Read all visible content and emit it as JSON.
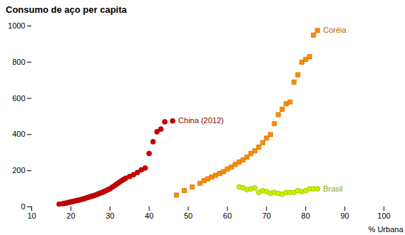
{
  "chart_data": {
    "type": "scatter",
    "title": "Consumo de aço per capita",
    "xlabel": "% Urbana",
    "xlim": [
      10,
      100
    ],
    "ylim": [
      0,
      1000
    ],
    "xticks": [
      10,
      20,
      30,
      40,
      50,
      60,
      70,
      80,
      90,
      100
    ],
    "yticks": [
      0,
      200,
      400,
      600,
      800,
      1000
    ],
    "grid": false,
    "series": [
      {
        "name": "China (2012)",
        "color": "#cc0000",
        "marker": "circle",
        "x": [
          17,
          18,
          18.5,
          19,
          19.5,
          20,
          20.5,
          21,
          21.5,
          22,
          22.5,
          23,
          23.5,
          24,
          24.5,
          25,
          25.5,
          26,
          26.5,
          27,
          27.5,
          28,
          28.5,
          29,
          29.5,
          30,
          30.5,
          31,
          31.5,
          32,
          32.5,
          33,
          33.5,
          34,
          35,
          36,
          37,
          38,
          39,
          40,
          41,
          42,
          43,
          44,
          46
        ],
        "values": [
          15,
          18,
          20,
          22,
          25,
          28,
          30,
          32,
          35,
          37,
          40,
          43,
          46,
          50,
          53,
          57,
          60,
          63,
          67,
          72,
          76,
          80,
          85,
          90,
          95,
          100,
          108,
          115,
          123,
          130,
          138,
          145,
          152,
          158,
          168,
          178,
          190,
          205,
          215,
          295,
          360,
          415,
          430,
          470,
          475
        ]
      },
      {
        "name": "Coréia",
        "color": "#ff8c00",
        "marker": "square",
        "x": [
          47,
          49,
          51,
          53,
          54,
          55,
          56,
          57,
          58,
          59,
          60,
          61,
          62,
          63,
          64,
          65,
          66,
          67,
          68,
          69,
          70,
          71,
          72,
          73,
          74,
          75,
          76,
          77,
          78,
          79,
          80,
          81,
          82,
          83
        ],
        "values": [
          65,
          90,
          110,
          130,
          145,
          155,
          165,
          175,
          185,
          195,
          210,
          220,
          235,
          248,
          260,
          275,
          295,
          310,
          330,
          355,
          380,
          400,
          460,
          510,
          540,
          570,
          580,
          690,
          730,
          800,
          815,
          830,
          950,
          975
        ]
      },
      {
        "name": "Brasil",
        "color": "#ccee00",
        "marker": "circle",
        "x": [
          63,
          64,
          65,
          66,
          67,
          68,
          69,
          70,
          71,
          72,
          73,
          74,
          75,
          76,
          77,
          78,
          79,
          80,
          81,
          82,
          83
        ],
        "values": [
          110,
          105,
          95,
          100,
          105,
          80,
          90,
          85,
          75,
          80,
          75,
          70,
          80,
          80,
          80,
          90,
          85,
          90,
          100,
          100,
          100
        ]
      }
    ]
  }
}
